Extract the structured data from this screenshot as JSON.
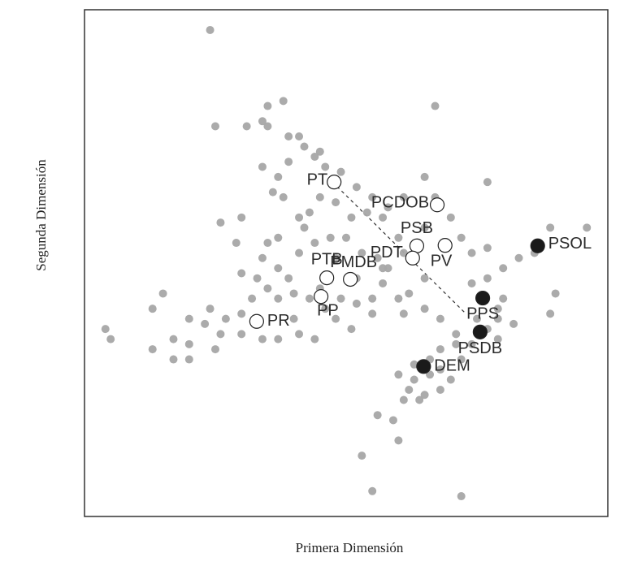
{
  "chart_data": {
    "type": "scatter",
    "x_label": "Primera Dimensión",
    "y_label": "Segunda Dimensión",
    "xlim": [
      0,
      100
    ],
    "ylim": [
      0,
      100
    ],
    "points": {
      "color": "#a6a6a6",
      "x": [
        24,
        4,
        5,
        13,
        15,
        13,
        17,
        17,
        20,
        20,
        25,
        31,
        35,
        38,
        67,
        34,
        35,
        39,
        41,
        42,
        39,
        37,
        34,
        44,
        45,
        46,
        49,
        52,
        55,
        58,
        57,
        54,
        51,
        48,
        45,
        43,
        41,
        38,
        36,
        30,
        26,
        29,
        34,
        37,
        39,
        41,
        44,
        47,
        50,
        53,
        56,
        58,
        57,
        55,
        52,
        49,
        46,
        43,
        40,
        37,
        35,
        32,
        30,
        27,
        26,
        24,
        30,
        34,
        37,
        41,
        44,
        48,
        51,
        55,
        60,
        62,
        65,
        61,
        60,
        65,
        70,
        72,
        74,
        77,
        80,
        83,
        86,
        89,
        96,
        90,
        89,
        80,
        79,
        82,
        79,
        74,
        71,
        68,
        68,
        66,
        63,
        61,
        64,
        68,
        70,
        60,
        72,
        77,
        56,
        59,
        60,
        53,
        55,
        72,
        42,
        37,
        65,
        67,
        61,
        77,
        52,
        57,
        61,
        65,
        74,
        75,
        20,
        23,
        25,
        33,
        30,
        48,
        45,
        40,
        35,
        63,
        66,
        68,
        62,
        65,
        71,
        77,
        79
      ],
      "y": [
        96,
        37,
        35,
        41,
        44,
        33,
        35,
        31,
        31,
        34,
        77,
        77,
        81,
        82,
        81,
        78,
        77,
        75,
        75,
        73,
        70,
        67,
        69,
        71,
        72,
        69,
        68,
        65,
        63,
        61,
        59,
        60,
        59,
        62,
        63,
        60,
        59,
        63,
        64,
        59,
        58,
        54,
        51,
        49,
        47,
        52,
        54,
        55,
        55,
        52,
        51,
        49,
        46,
        43,
        42,
        43,
        41,
        43,
        44,
        43,
        45,
        43,
        40,
        39,
        36,
        41,
        36,
        35,
        35,
        36,
        35,
        39,
        37,
        40,
        43,
        44,
        47,
        52,
        55,
        57,
        59,
        55,
        52,
        53,
        49,
        51,
        52,
        57,
        57,
        44,
        40,
        43,
        41,
        38,
        35,
        34,
        36,
        39,
        33,
        28,
        27,
        23,
        23,
        25,
        27,
        28,
        31,
        66,
        20,
        19,
        15,
        12,
        5,
        4,
        57,
        55,
        67,
        63,
        63,
        47,
        47,
        49,
        40,
        41,
        46,
        39,
        39,
        38,
        33,
        47,
        48,
        51,
        45,
        39,
        54,
        30,
        31,
        29,
        25,
        24,
        34,
        37,
        39
      ]
    },
    "parties": {
      "labels": [
        "PT",
        "PCDOB",
        "PSB",
        "PDT",
        "PV",
        "PSOL",
        "PTB",
        "PMDB",
        "PP",
        "PR",
        "PPS",
        "PSDB",
        "DEM"
      ],
      "x": [
        47.7,
        67.4,
        63.5,
        62.7,
        68.9,
        86.6,
        46.3,
        50.8,
        45.2,
        32.9,
        76.1,
        75.6,
        64.8
      ],
      "y": [
        66.0,
        61.5,
        53.4,
        51.0,
        53.5,
        53.4,
        47.1,
        46.8,
        43.4,
        38.5,
        43.1,
        36.4,
        29.6
      ],
      "colors": [
        "#ffffff",
        "#ffffff",
        "#ffffff",
        "#ffffff",
        "#ffffff",
        "#1a1a1a",
        "#ffffff",
        "#ffffff",
        "#ffffff",
        "#ffffff",
        "#1a1a1a",
        "#1a1a1a",
        "#1a1a1a"
      ]
    }
  }
}
